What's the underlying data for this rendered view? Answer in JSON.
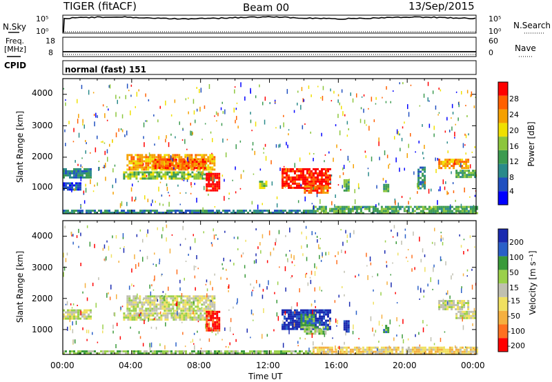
{
  "header": {
    "radar_title": "TIGER (fitACF)",
    "beam": "Beam 00",
    "date": "13/Sep/2015"
  },
  "panels": {
    "nsky": {
      "left_label": "N.Sky",
      "left_ticks": [
        "10^5",
        "10^0"
      ],
      "right_label": "N.Search",
      "right_ticks": [
        "10^5",
        "10^0"
      ]
    },
    "freq": {
      "left_label_1": "Freq.",
      "left_label_2": "[MHz]",
      "left_ticks": [
        "18",
        "8"
      ],
      "right_label": "Nave",
      "right_ticks": [
        "60",
        "0"
      ]
    },
    "cpid": {
      "label": "CPID",
      "mode": "normal (fast) 151"
    }
  },
  "chart_data": [
    {
      "type": "heatmap",
      "name": "power",
      "ylabel": "Slant Range [km]",
      "yticks": [
        1000,
        2000,
        3000,
        4000
      ],
      "ylim": [
        200,
        4500
      ],
      "xlim": [
        0,
        24
      ],
      "colorbar": {
        "label": "Power [dB]",
        "ticks": [
          "28",
          "24",
          "20",
          "16",
          "12",
          "8",
          "4"
        ],
        "colors": [
          "#0000ff",
          "#2050c0",
          "#2a8a8a",
          "#3c9b50",
          "#8cc63c",
          "#f0e000",
          "#f5a000",
          "#ff6000",
          "#ff0000"
        ]
      },
      "regions": [
        {
          "t0": 0.0,
          "t1": 1.6,
          "r0": 1350,
          "r1": 1650,
          "level": 2
        },
        {
          "t0": 0.0,
          "t1": 1.0,
          "r0": 1000,
          "r1": 1200,
          "level": 1
        },
        {
          "t0": 3.7,
          "t1": 8.8,
          "r0": 1600,
          "r1": 2100,
          "level": 6
        },
        {
          "t0": 5.2,
          "t1": 8.3,
          "r0": 1650,
          "r1": 1950,
          "level": 7
        },
        {
          "t0": 3.5,
          "t1": 8.6,
          "r0": 1300,
          "r1": 1550,
          "level": 4
        },
        {
          "t0": 8.3,
          "t1": 9.1,
          "r0": 950,
          "r1": 1500,
          "level": 8
        },
        {
          "t0": 12.7,
          "t1": 15.5,
          "r0": 1000,
          "r1": 1650,
          "level": 8
        },
        {
          "t0": 14.0,
          "t1": 15.4,
          "r0": 850,
          "r1": 1100,
          "level": 7
        },
        {
          "t0": 11.4,
          "t1": 11.8,
          "r0": 1000,
          "r1": 1250,
          "level": 4
        },
        {
          "t0": 16.3,
          "t1": 16.6,
          "r0": 950,
          "r1": 1300,
          "level": 3
        },
        {
          "t0": 18.6,
          "t1": 18.9,
          "r0": 900,
          "r1": 1150,
          "level": 3
        },
        {
          "t0": 21.8,
          "t1": 23.5,
          "r0": 1650,
          "r1": 1950,
          "level": 6
        },
        {
          "t0": 22.8,
          "t1": 24.0,
          "r0": 1350,
          "r1": 1600,
          "level": 3
        },
        {
          "t0": 20.6,
          "t1": 21.0,
          "r0": 1000,
          "r1": 1700,
          "level": 2
        },
        {
          "t0": 14.5,
          "t1": 24.0,
          "r0": 220,
          "r1": 450,
          "level": 3
        },
        {
          "t0": 0.0,
          "t1": 14.5,
          "r0": 220,
          "r1": 330,
          "level": 2
        }
      ]
    },
    {
      "type": "heatmap",
      "name": "velocity",
      "ylabel": "Slant Range [km]",
      "yticks": [
        1000,
        2000,
        3000,
        4000
      ],
      "ylim": [
        200,
        4500
      ],
      "xlim": [
        0,
        24
      ],
      "xlabel": "Time UT",
      "xticks": [
        "00:00",
        "04:00",
        "08:00",
        "12:00",
        "16:00",
        "20:00",
        "00:00"
      ],
      "colorbar": {
        "label": "Velocity [m s^-1]",
        "ticks": [
          "200",
          "100",
          "50",
          "15",
          "-15",
          "-50",
          "-100",
          "-200"
        ],
        "colors": [
          "#1a2ab0",
          "#2a60c8",
          "#3a9a3a",
          "#9ad04a",
          "#c0c0b0",
          "#f0e060",
          "#f5b040",
          "#ff7020",
          "#ff0000"
        ]
      },
      "regions": [
        {
          "t0": 0.0,
          "t1": 1.6,
          "r0": 1350,
          "r1": 1650,
          "level": 4
        },
        {
          "t0": 3.7,
          "t1": 8.8,
          "r0": 1600,
          "r1": 2100,
          "level": 4
        },
        {
          "t0": 3.5,
          "t1": 8.6,
          "r0": 1300,
          "r1": 1550,
          "level": 4
        },
        {
          "t0": 8.3,
          "t1": 9.1,
          "r0": 950,
          "r1": 1600,
          "level": 8
        },
        {
          "t0": 12.7,
          "t1": 15.5,
          "r0": 1000,
          "r1": 1650,
          "level": 0
        },
        {
          "t0": 13.8,
          "t1": 14.6,
          "r0": 1100,
          "r1": 1500,
          "level": 2
        },
        {
          "t0": 14.0,
          "t1": 15.4,
          "r0": 850,
          "r1": 1100,
          "level": 3
        },
        {
          "t0": 16.3,
          "t1": 16.6,
          "r0": 950,
          "r1": 1300,
          "level": 0
        },
        {
          "t0": 18.6,
          "t1": 18.9,
          "r0": 900,
          "r1": 1150,
          "level": 2
        },
        {
          "t0": 21.8,
          "t1": 23.5,
          "r0": 1650,
          "r1": 1950,
          "level": 4
        },
        {
          "t0": 22.8,
          "t1": 24.0,
          "r0": 1350,
          "r1": 1600,
          "level": 4
        },
        {
          "t0": 14.5,
          "t1": 24.0,
          "r0": 220,
          "r1": 450,
          "level": 5
        },
        {
          "t0": 0.0,
          "t1": 14.5,
          "r0": 220,
          "r1": 330,
          "level": 3
        }
      ]
    }
  ]
}
